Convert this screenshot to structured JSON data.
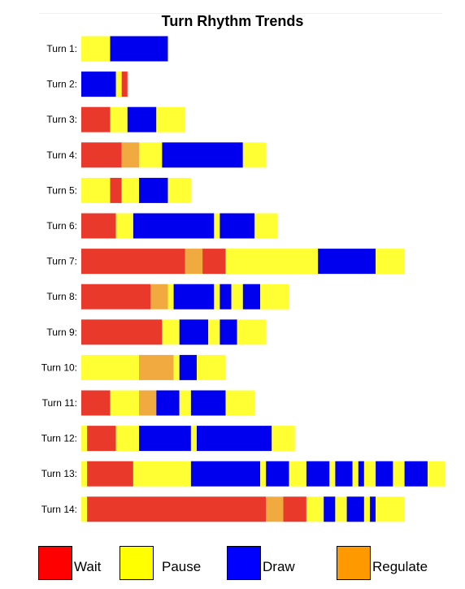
{
  "chart_data": {
    "type": "bar",
    "title": "Turn Rhythm Trends",
    "categories": [
      "Turn 1:",
      "Turn 2:",
      "Turn 3:",
      "Turn 4:",
      "Turn 5:",
      "Turn 6:",
      "Turn 7:",
      "Turn 8:",
      "Turn 9:",
      "Turn 10:",
      "Turn 11:",
      "Turn 12:",
      "Turn 13:",
      "Turn 14:"
    ],
    "legend": [
      {
        "name": "Wait",
        "key": "W",
        "color": "#ff0000"
      },
      {
        "name": "Pause",
        "key": "P",
        "color": "#ffff00"
      },
      {
        "name": "Draw",
        "key": "D",
        "color": "#0000ff"
      },
      {
        "name": "Regulate",
        "key": "R",
        "color": "#ff9900"
      }
    ],
    "bar_colors": {
      "W": "#e8392b",
      "P": "#ffff33",
      "D": "#0000ee",
      "R": "#f0aa40"
    },
    "legend_placement": "bottom",
    "xlim": [
      0,
      62
    ],
    "turns": [
      [
        [
          "P",
          5
        ],
        [
          "D",
          10
        ]
      ],
      [
        [
          "D",
          6
        ],
        [
          "P",
          1
        ],
        [
          "W",
          1
        ]
      ],
      [
        [
          "W",
          5
        ],
        [
          "P",
          3
        ],
        [
          "D",
          5
        ],
        [
          "P",
          5
        ]
      ],
      [
        [
          "W",
          7
        ],
        [
          "R",
          3
        ],
        [
          "P",
          4
        ],
        [
          "D",
          14
        ],
        [
          "P",
          4
        ]
      ],
      [
        [
          "P",
          5
        ],
        [
          "W",
          2
        ],
        [
          "P",
          3
        ],
        [
          "D",
          5
        ],
        [
          "P",
          4
        ]
      ],
      [
        [
          "W",
          6
        ],
        [
          "P",
          3
        ],
        [
          "D",
          14
        ],
        [
          "P",
          1
        ],
        [
          "D",
          6
        ],
        [
          "P",
          4
        ]
      ],
      [
        [
          "W",
          18
        ],
        [
          "R",
          3
        ],
        [
          "W",
          4
        ],
        [
          "P",
          16
        ],
        [
          "D",
          10
        ],
        [
          "P",
          5
        ]
      ],
      [
        [
          "W",
          12
        ],
        [
          "R",
          3
        ],
        [
          "P",
          1
        ],
        [
          "D",
          7
        ],
        [
          "P",
          1
        ],
        [
          "D",
          2
        ],
        [
          "P",
          2
        ],
        [
          "D",
          3
        ],
        [
          "P",
          5
        ]
      ],
      [
        [
          "W",
          14
        ],
        [
          "P",
          3
        ],
        [
          "D",
          5
        ],
        [
          "P",
          2
        ],
        [
          "D",
          3
        ],
        [
          "P",
          5
        ]
      ],
      [
        [
          "P",
          10
        ],
        [
          "R",
          6
        ],
        [
          "P",
          1
        ],
        [
          "D",
          3
        ],
        [
          "P",
          5
        ]
      ],
      [
        [
          "W",
          5
        ],
        [
          "P",
          5
        ],
        [
          "R",
          3
        ],
        [
          "D",
          4
        ],
        [
          "P",
          2
        ],
        [
          "D",
          6
        ],
        [
          "P",
          5
        ]
      ],
      [
        [
          "P",
          1
        ],
        [
          "W",
          5
        ],
        [
          "P",
          4
        ],
        [
          "D",
          9
        ],
        [
          "P",
          1
        ],
        [
          "D",
          13
        ],
        [
          "P",
          4
        ]
      ],
      [
        [
          "P",
          1
        ],
        [
          "W",
          8
        ],
        [
          "P",
          10
        ],
        [
          "D",
          12
        ],
        [
          "P",
          1
        ],
        [
          "D",
          4
        ],
        [
          "P",
          3
        ],
        [
          "D",
          4
        ],
        [
          "P",
          1
        ],
        [
          "D",
          3
        ],
        [
          "P",
          1
        ],
        [
          "D",
          1
        ],
        [
          "P",
          2
        ],
        [
          "D",
          3
        ],
        [
          "P",
          2
        ],
        [
          "D",
          4
        ],
        [
          "P",
          3
        ]
      ],
      [
        [
          "P",
          1
        ],
        [
          "W",
          31
        ],
        [
          "R",
          3
        ],
        [
          "W",
          4
        ],
        [
          "P",
          3
        ],
        [
          "D",
          2
        ],
        [
          "P",
          2
        ],
        [
          "D",
          3
        ],
        [
          "P",
          1
        ],
        [
          "D",
          1
        ],
        [
          "P",
          5
        ]
      ]
    ]
  }
}
